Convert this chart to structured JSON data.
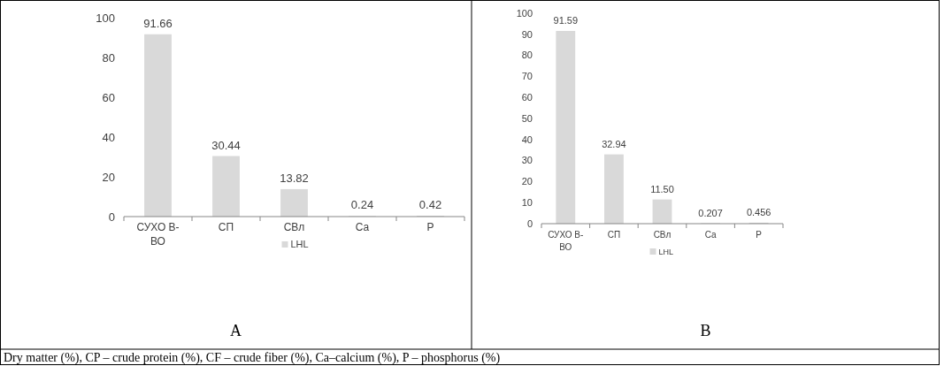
{
  "chart_data": [
    {
      "type": "bar",
      "title": "A",
      "categories": [
        "СУХО В-\nВО",
        "СП",
        "СВл",
        "Ca",
        "P"
      ],
      "series": [
        {
          "name": "LHL",
          "color": "#d9d9d9",
          "values": [
            91.66,
            30.44,
            13.82,
            0.24,
            0.42
          ]
        }
      ],
      "ylim": [
        0,
        100
      ],
      "yticks": [
        0,
        20,
        40,
        60,
        80,
        100
      ],
      "data_labels": true,
      "legend": "bottom",
      "grid": false,
      "annotations": [
        "Dry matter (%), CP – crude protein (%), CF – crude fiber (%), Ca–calcium (%), P – phosphorus (%)"
      ]
    },
    {
      "type": "bar",
      "title": "B",
      "categories": [
        "СУХО В-\nВО",
        "СП",
        "СВл",
        "Ca",
        "P"
      ],
      "series": [
        {
          "name": "LHL",
          "color": "#d9d9d9",
          "values": [
            91.59,
            32.94,
            11.5,
            0.207,
            0.456
          ],
          "value_labels": [
            "91.59",
            "32.94",
            "11.50",
            "0.207",
            "0.456"
          ]
        }
      ],
      "ylim": [
        0,
        100
      ],
      "yticks": [
        0,
        10,
        20,
        30,
        40,
        50,
        60,
        70,
        80,
        90,
        100
      ],
      "legend": "bottom",
      "grid": false
    }
  ]
}
